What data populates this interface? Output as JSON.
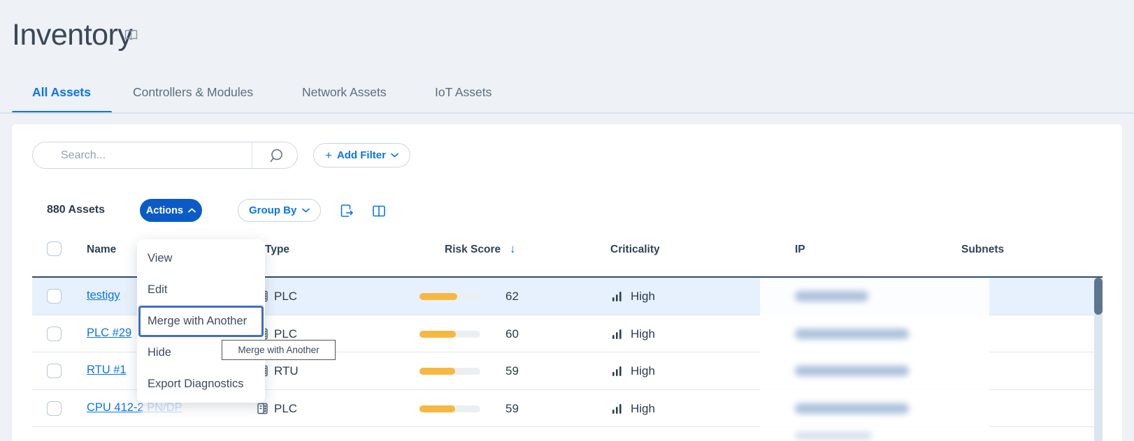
{
  "page": {
    "title": "Inventory"
  },
  "tabs": [
    {
      "label": "All Assets",
      "active": true
    },
    {
      "label": "Controllers & Modules",
      "active": false
    },
    {
      "label": "Network Assets",
      "active": false
    },
    {
      "label": "IoT Assets",
      "active": false
    }
  ],
  "toolbar": {
    "search_placeholder": "Search...",
    "add_filter_plus": "+",
    "add_filter_label": "Add Filter",
    "assets_count": "880 Assets",
    "actions_label": "Actions",
    "group_by_label": "Group By"
  },
  "menu": {
    "items": [
      "View",
      "Edit",
      "Merge with Another",
      "Hide",
      "Export Diagnostics"
    ],
    "focused_item": "Merge with Another"
  },
  "tooltip": {
    "text": "Merge with Another"
  },
  "table": {
    "columns": [
      "Name",
      "Type",
      "Risk Score",
      "Criticality",
      "IP",
      "Subnets"
    ],
    "sort_column": "Risk Score",
    "sort_indicator": "↓",
    "ip_values_blurred": true,
    "rows": [
      {
        "name": "testigy",
        "type": "PLC",
        "risk_score": 62,
        "criticality": "High",
        "highlighted": true
      },
      {
        "name": "PLC #29",
        "type": "PLC",
        "risk_score": 60,
        "criticality": "High",
        "highlighted": false
      },
      {
        "name": "RTU #1",
        "type": "RTU",
        "risk_score": 59,
        "criticality": "High",
        "highlighted": false
      },
      {
        "name": "CPU 412-2 PN/DP",
        "type": "PLC",
        "risk_score": 59,
        "criticality": "High",
        "highlighted": false
      }
    ]
  },
  "colors": {
    "accent_blue": "#0b74ee",
    "actions_button_blue": "#0b5bc7",
    "risk_bar_amber": "#f6b840",
    "row_highlight": "#e7f1fd",
    "table_top_border": "#2d4c6a",
    "scroll_thumb": "#5e7590",
    "focus_ring": "#3f6dc9",
    "page_background": "#eef1f5"
  }
}
